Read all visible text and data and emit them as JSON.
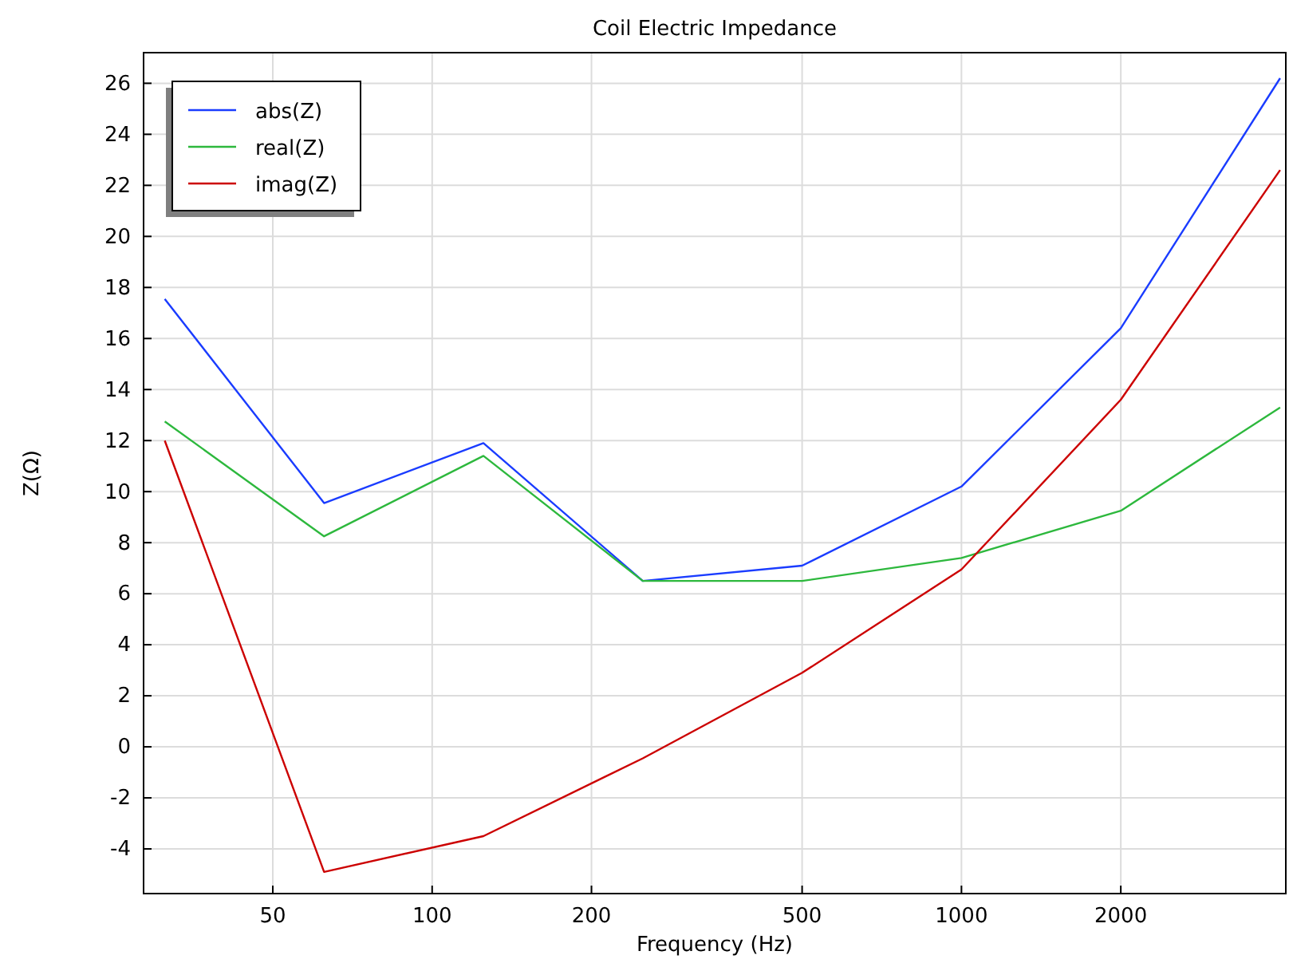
{
  "chart_data": {
    "type": "line",
    "title": "Coil Electric Impedance",
    "xlabel": "Frequency (Hz)",
    "ylabel": "Z(Ω)",
    "x": [
      31.25,
      62.5,
      125,
      250,
      500,
      1000,
      2000,
      4000
    ],
    "series": [
      {
        "name": "abs(Z)",
        "color": "#1a3cff",
        "values": [
          17.55,
          9.55,
          11.9,
          6.5,
          7.1,
          10.2,
          16.4,
          26.2
        ]
      },
      {
        "name": "real(Z)",
        "color": "#2db83d",
        "values": [
          12.75,
          8.25,
          11.4,
          6.5,
          6.5,
          7.4,
          9.25,
          13.3
        ]
      },
      {
        "name": "imag(Z)",
        "color": "#cc0000",
        "values": [
          12.0,
          -4.9,
          -3.5,
          -0.45,
          2.9,
          6.95,
          13.6,
          22.6
        ]
      }
    ],
    "log": "x",
    "xlim": [
      28.5,
      4100
    ],
    "xticks": [
      50,
      100,
      200,
      500,
      1000,
      2000
    ],
    "ylim": [
      -5.75,
      27.2
    ],
    "yticks": [
      -4,
      -2,
      0,
      2,
      4,
      6,
      8,
      10,
      12,
      14,
      16,
      18,
      20,
      22,
      24,
      26
    ],
    "grid": true,
    "legend": "top left",
    "marker": "none",
    "line_style": "solid"
  }
}
